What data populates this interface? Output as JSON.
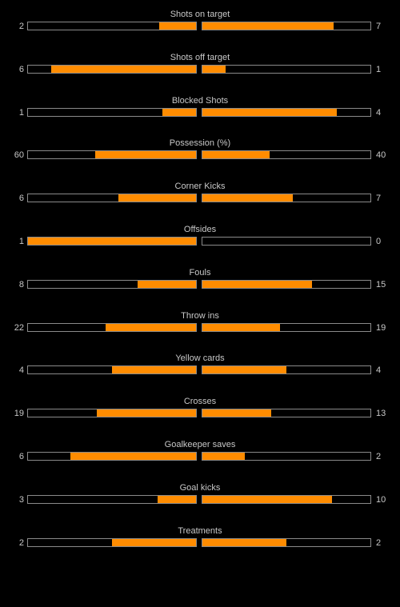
{
  "colors": {
    "background": "#000000",
    "bar_fill": "#ff8c00",
    "bar_border": "#8a8a8a",
    "text": "#c8c8c8"
  },
  "stats": [
    {
      "label": "Shots on target",
      "home": "2",
      "away": "7",
      "home_fill": 0.22,
      "away_fill": 0.78
    },
    {
      "label": "Shots off target",
      "home": "6",
      "away": "1",
      "home_fill": 0.86,
      "away_fill": 0.14
    },
    {
      "label": "Blocked Shots",
      "home": "1",
      "away": "4",
      "home_fill": 0.2,
      "away_fill": 0.8
    },
    {
      "label": "Possession (%)",
      "home": "60",
      "away": "40",
      "home_fill": 0.6,
      "away_fill": 0.4
    },
    {
      "label": "Corner Kicks",
      "home": "6",
      "away": "7",
      "home_fill": 0.46,
      "away_fill": 0.54
    },
    {
      "label": "Offsides",
      "home": "1",
      "away": "0",
      "home_fill": 1.0,
      "away_fill": 0.0
    },
    {
      "label": "Fouls",
      "home": "8",
      "away": "15",
      "home_fill": 0.35,
      "away_fill": 0.65
    },
    {
      "label": "Throw ins",
      "home": "22",
      "away": "19",
      "home_fill": 0.54,
      "away_fill": 0.46
    },
    {
      "label": "Yellow cards",
      "home": "4",
      "away": "4",
      "home_fill": 0.5,
      "away_fill": 0.5
    },
    {
      "label": "Crosses",
      "home": "19",
      "away": "13",
      "home_fill": 0.59,
      "away_fill": 0.41
    },
    {
      "label": "Goalkeeper saves",
      "home": "6",
      "away": "2",
      "home_fill": 0.75,
      "away_fill": 0.25
    },
    {
      "label": "Goal kicks",
      "home": "3",
      "away": "10",
      "home_fill": 0.23,
      "away_fill": 0.77
    },
    {
      "label": "Treatments",
      "home": "2",
      "away": "2",
      "home_fill": 0.5,
      "away_fill": 0.5
    }
  ]
}
